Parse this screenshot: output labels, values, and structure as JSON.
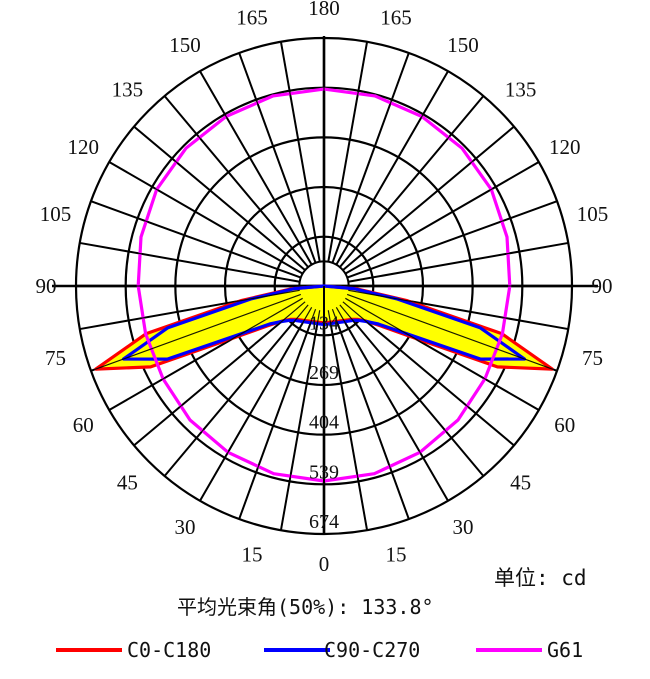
{
  "chart_data": {
    "type": "polar",
    "title": "",
    "unit_label": "单位: cd",
    "beam_angle_label": "平均光束角(50%): 133.8°",
    "angle_labels_left": [
      "0",
      "15",
      "30",
      "45",
      "60",
      "75",
      "90",
      "105",
      "120",
      "135",
      "150",
      "165",
      "180"
    ],
    "angle_labels_right": [
      "15",
      "30",
      "45",
      "60",
      "75",
      "90",
      "105",
      "120",
      "135",
      "150",
      "165"
    ],
    "ring_values": [
      134,
      269,
      404,
      539,
      674
    ],
    "ring_labels": [
      "134",
      "269",
      "404",
      "539",
      "674"
    ],
    "rmax": 674,
    "grid": true,
    "legend_position": "bottom",
    "series": [
      {
        "name": "C0-C180",
        "color": "#ff0000",
        "fill": "#ffff00",
        "angles": [
          0,
          10,
          20,
          30,
          40,
          45,
          50,
          55,
          60,
          65,
          70,
          75,
          80,
          85,
          90
        ],
        "values": [
          100,
          100,
          102,
          108,
          118,
          128,
          148,
          190,
          280,
          520,
          660,
          500,
          230,
          90,
          0
        ]
      },
      {
        "name": "C90-C270",
        "color": "#0000ff",
        "fill": "#ffff00",
        "angles": [
          0,
          10,
          20,
          30,
          40,
          45,
          50,
          55,
          60,
          65,
          70,
          75,
          80,
          85,
          90
        ],
        "values": [
          105,
          104,
          106,
          112,
          122,
          132,
          150,
          180,
          260,
          470,
          580,
          440,
          200,
          80,
          0
        ]
      },
      {
        "name": "G61",
        "color": "#ff00ff",
        "angles": [
          0,
          15,
          30,
          45,
          60,
          75,
          90,
          105,
          120,
          135,
          150,
          165,
          180
        ],
        "values": [
          530,
          528,
          522,
          515,
          505,
          502,
          505,
          515,
          525,
          530,
          532,
          535,
          535
        ]
      }
    ]
  }
}
